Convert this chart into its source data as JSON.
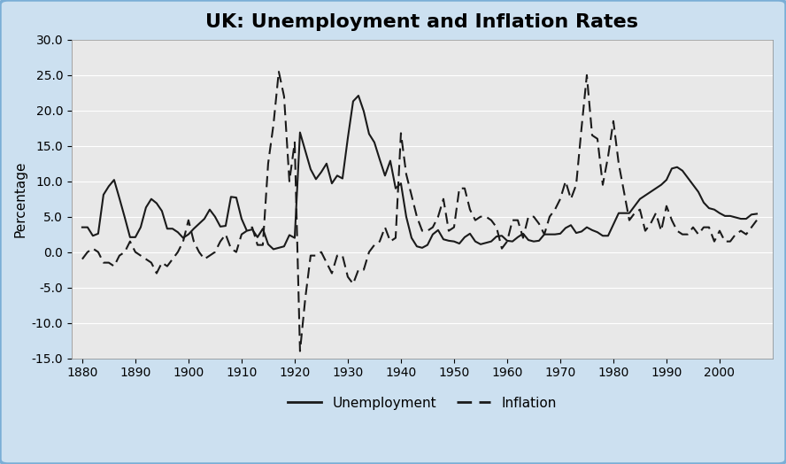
{
  "title": "UK: Unemployment and Inflation Rates",
  "ylabel": "Percentage",
  "xlim": [
    1878,
    2010
  ],
  "ylim": [
    -15.0,
    30.0
  ],
  "yticks": [
    -15.0,
    -10.0,
    -5.0,
    0.0,
    5.0,
    10.0,
    15.0,
    20.0,
    25.0,
    30.0
  ],
  "xticks": [
    1880,
    1890,
    1900,
    1910,
    1920,
    1930,
    1940,
    1950,
    1960,
    1970,
    1980,
    1990,
    2000
  ],
  "background_color": "#cce0f0",
  "plot_background": "#e8e8e8",
  "unemployment": {
    "years": [
      1880,
      1881,
      1882,
      1883,
      1884,
      1885,
      1886,
      1887,
      1888,
      1889,
      1890,
      1891,
      1892,
      1893,
      1894,
      1895,
      1896,
      1897,
      1898,
      1899,
      1900,
      1901,
      1902,
      1903,
      1904,
      1905,
      1906,
      1907,
      1908,
      1909,
      1910,
      1911,
      1912,
      1913,
      1914,
      1915,
      1916,
      1917,
      1918,
      1919,
      1920,
      1921,
      1922,
      1923,
      1924,
      1925,
      1926,
      1927,
      1928,
      1929,
      1930,
      1931,
      1932,
      1933,
      1934,
      1935,
      1936,
      1937,
      1938,
      1939,
      1940,
      1941,
      1942,
      1943,
      1944,
      1945,
      1946,
      1947,
      1948,
      1949,
      1950,
      1951,
      1952,
      1953,
      1954,
      1955,
      1956,
      1957,
      1958,
      1959,
      1960,
      1961,
      1962,
      1963,
      1964,
      1965,
      1966,
      1967,
      1968,
      1969,
      1970,
      1971,
      1972,
      1973,
      1974,
      1975,
      1976,
      1977,
      1978,
      1979,
      1980,
      1981,
      1982,
      1983,
      1984,
      1985,
      1986,
      1987,
      1988,
      1989,
      1990,
      1991,
      1992,
      1993,
      1994,
      1995,
      1996,
      1997,
      1998,
      1999,
      2000,
      2001,
      2002,
      2003,
      2004,
      2005,
      2006,
      2007
    ],
    "values": [
      3.5,
      3.5,
      2.3,
      2.6,
      8.1,
      9.3,
      10.2,
      7.6,
      4.9,
      2.1,
      2.1,
      3.5,
      6.3,
      7.5,
      6.9,
      5.8,
      3.3,
      3.3,
      2.8,
      2.0,
      2.5,
      3.3,
      4.0,
      4.7,
      6.0,
      5.0,
      3.6,
      3.7,
      7.8,
      7.7,
      4.7,
      3.0,
      3.2,
      2.1,
      3.3,
      1.1,
      0.4,
      0.6,
      0.8,
      2.4,
      2.0,
      16.9,
      14.3,
      11.7,
      10.3,
      11.3,
      12.5,
      9.7,
      10.8,
      10.4,
      16.1,
      21.3,
      22.1,
      19.9,
      16.7,
      15.5,
      13.1,
      10.8,
      12.9,
      9.0,
      9.7,
      5.0,
      2.0,
      0.8,
      0.6,
      1.0,
      2.5,
      3.1,
      1.8,
      1.6,
      1.5,
      1.2,
      2.1,
      2.6,
      1.5,
      1.1,
      1.3,
      1.5,
      2.2,
      2.3,
      1.6,
      1.5,
      2.1,
      2.6,
      1.7,
      1.5,
      1.6,
      2.5,
      2.5,
      2.5,
      2.6,
      3.4,
      3.8,
      2.7,
      2.9,
      3.5,
      3.1,
      2.8,
      2.3,
      2.3,
      3.9,
      5.5,
      5.5,
      5.5,
      6.5,
      7.5,
      8.0,
      8.5,
      9.0,
      9.5,
      10.2,
      11.8,
      12.0,
      11.5,
      10.5,
      9.5,
      8.5,
      7.0,
      6.2,
      6.0,
      5.5,
      5.1,
      5.1,
      4.9,
      4.7,
      4.7,
      5.3,
      5.4
    ]
  },
  "inflation": {
    "years": [
      1880,
      1881,
      1882,
      1883,
      1884,
      1885,
      1886,
      1887,
      1888,
      1889,
      1890,
      1891,
      1892,
      1893,
      1894,
      1895,
      1896,
      1897,
      1898,
      1899,
      1900,
      1901,
      1902,
      1903,
      1904,
      1905,
      1906,
      1907,
      1908,
      1909,
      1910,
      1911,
      1912,
      1913,
      1914,
      1915,
      1916,
      1917,
      1918,
      1919,
      1920,
      1921,
      1922,
      1923,
      1924,
      1925,
      1926,
      1927,
      1928,
      1929,
      1930,
      1931,
      1932,
      1933,
      1934,
      1935,
      1936,
      1937,
      1938,
      1939,
      1940,
      1941,
      1942,
      1943,
      1944,
      1945,
      1946,
      1947,
      1948,
      1949,
      1950,
      1951,
      1952,
      1953,
      1954,
      1955,
      1956,
      1957,
      1958,
      1959,
      1960,
      1961,
      1962,
      1963,
      1964,
      1965,
      1966,
      1967,
      1968,
      1969,
      1970,
      1971,
      1972,
      1973,
      1974,
      1975,
      1976,
      1977,
      1978,
      1979,
      1980,
      1981,
      1982,
      1983,
      1984,
      1985,
      1986,
      1987,
      1988,
      1989,
      1990,
      1991,
      1992,
      1993,
      1994,
      1995,
      1996,
      1997,
      1998,
      1999,
      2000,
      2001,
      2002,
      2003,
      2004,
      2005,
      2006,
      2007
    ],
    "values": [
      -1.0,
      0.0,
      0.5,
      0.0,
      -1.5,
      -1.5,
      -2.0,
      -0.5,
      0.0,
      1.5,
      0.0,
      -0.5,
      -1.0,
      -1.5,
      -3.0,
      -1.5,
      -2.0,
      -1.0,
      0.0,
      1.5,
      4.5,
      1.5,
      0.0,
      -1.0,
      -0.5,
      0.0,
      1.5,
      2.5,
      0.5,
      0.0,
      2.5,
      3.0,
      3.5,
      1.0,
      1.0,
      12.5,
      18.0,
      25.5,
      22.0,
      10.0,
      15.5,
      -14.0,
      -6.5,
      -0.5,
      -0.5,
      0.0,
      -1.5,
      -3.0,
      -0.5,
      -0.5,
      -3.5,
      -4.5,
      -2.5,
      -2.5,
      0.0,
      1.0,
      1.5,
      3.5,
      1.5,
      2.0,
      16.8,
      11.0,
      8.0,
      5.0,
      3.0,
      3.0,
      3.5,
      5.0,
      7.5,
      3.0,
      3.5,
      9.0,
      9.0,
      6.0,
      4.5,
      5.0,
      5.0,
      4.5,
      3.5,
      0.5,
      1.5,
      4.5,
      4.5,
      2.0,
      5.0,
      5.0,
      4.0,
      2.5,
      5.0,
      6.0,
      7.5,
      10.0,
      7.5,
      9.5,
      17.5,
      25.0,
      16.5,
      16.0,
      9.5,
      13.5,
      18.5,
      12.5,
      8.5,
      4.5,
      5.5,
      6.0,
      3.0,
      4.0,
      5.5,
      3.0,
      6.5,
      4.5,
      3.0,
      2.5,
      2.5,
      3.5,
      2.5,
      3.5,
      3.5,
      1.5,
      3.0,
      1.5,
      1.5,
      2.5,
      3.0,
      2.5,
      3.5,
      4.5
    ]
  },
  "line_color": "#1a1a1a",
  "title_fontsize": 16,
  "label_fontsize": 11,
  "tick_fontsize": 10
}
